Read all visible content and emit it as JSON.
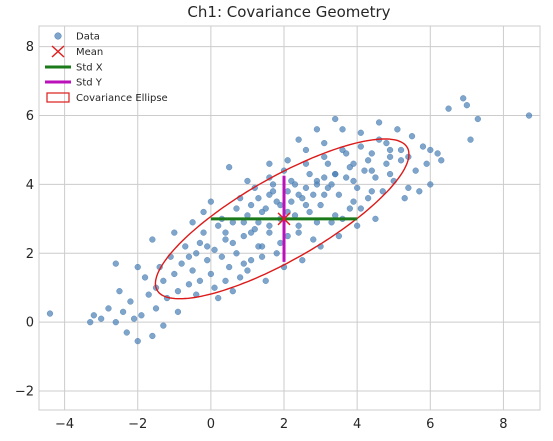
{
  "chart_data": {
    "type": "scatter",
    "title": "Ch1: Covariance Geometry",
    "xlabel": "",
    "ylabel": "",
    "xlim": [
      -4.7,
      9.0
    ],
    "ylim": [
      -2.55,
      8.6
    ],
    "xticks": [
      -4,
      -2,
      0,
      2,
      4,
      6,
      8
    ],
    "yticks": [
      -2,
      0,
      2,
      4,
      6,
      8
    ],
    "xtick_labels": [
      "−4",
      "−2",
      "0",
      "2",
      "4",
      "6",
      "8"
    ],
    "ytick_labels": [
      "−2",
      "0",
      "2",
      "4",
      "6",
      "8"
    ],
    "grid": true,
    "legend_position": "top-left",
    "legend": [
      "Data",
      "Mean",
      "Std X",
      "Std Y",
      "Covariance Ellipse"
    ],
    "colors": {
      "data": "#4a7fb5",
      "mean": "#e01f1f",
      "std_x": "#1a7a1a",
      "std_y": "#bb11bb",
      "ellipse": "#dd1a1a",
      "grid": "#cccccc",
      "frame": "#cccccc"
    },
    "mean": [
      2.0,
      3.0
    ],
    "std_x": {
      "center": [
        2.0,
        3.0
      ],
      "half_width": 2.0
    },
    "std_y": {
      "center": [
        2.0,
        3.0
      ],
      "half_height": 1.25
    },
    "covariance_ellipse": {
      "center": [
        1.95,
        3.0
      ],
      "semi_major": 4.0,
      "semi_minor": 1.18,
      "angle_deg": 31.5
    },
    "series": [
      {
        "name": "Data",
        "points": [
          [
            -4.4,
            0.25
          ],
          [
            -3.2,
            0.2
          ],
          [
            -3.0,
            0.1
          ],
          [
            -2.8,
            0.4
          ],
          [
            -2.6,
            0.0
          ],
          [
            -2.5,
            0.9
          ],
          [
            -2.4,
            0.3
          ],
          [
            -2.2,
            0.6
          ],
          [
            -2.1,
            0.1
          ],
          [
            -2.0,
            -0.55
          ],
          [
            -2.0,
            1.6
          ],
          [
            -1.9,
            0.2
          ],
          [
            -1.7,
            0.8
          ],
          [
            -1.6,
            -0.4
          ],
          [
            -1.8,
            1.3
          ],
          [
            -1.5,
            1.0
          ],
          [
            -1.4,
            1.6
          ],
          [
            -1.3,
            1.2
          ],
          [
            -1.6,
            2.4
          ],
          [
            -1.2,
            0.7
          ],
          [
            -1.1,
            1.9
          ],
          [
            -1.0,
            1.4
          ],
          [
            -0.9,
            0.9
          ],
          [
            -0.8,
            1.7
          ],
          [
            -0.7,
            2.2
          ],
          [
            -0.6,
            1.1
          ],
          [
            -0.5,
            1.5
          ],
          [
            -0.4,
            2.0
          ],
          [
            -0.3,
            1.2
          ],
          [
            -0.2,
            2.6
          ],
          [
            -0.1,
            1.8
          ],
          [
            0.0,
            1.4
          ],
          [
            0.1,
            2.1
          ],
          [
            0.2,
            0.7
          ],
          [
            0.3,
            1.9
          ],
          [
            0.4,
            2.4
          ],
          [
            0.5,
            1.6
          ],
          [
            0.6,
            2.9
          ],
          [
            0.7,
            2.0
          ],
          [
            0.8,
            1.3
          ],
          [
            0.9,
            2.5
          ],
          [
            1.0,
            3.1
          ],
          [
            1.1,
            1.8
          ],
          [
            1.2,
            2.7
          ],
          [
            1.3,
            3.6
          ],
          [
            1.4,
            2.2
          ],
          [
            1.5,
            3.3
          ],
          [
            1.6,
            2.6
          ],
          [
            1.7,
            3.8
          ],
          [
            1.8,
            2.0
          ],
          [
            1.9,
            3.0
          ],
          [
            2.0,
            4.4
          ],
          [
            2.1,
            2.5
          ],
          [
            2.2,
            3.5
          ],
          [
            2.3,
            4.0
          ],
          [
            2.4,
            2.8
          ],
          [
            2.5,
            3.6
          ],
          [
            2.6,
            4.6
          ],
          [
            2.7,
            3.2
          ],
          [
            2.8,
            2.4
          ],
          [
            2.9,
            4.1
          ],
          [
            3.0,
            3.4
          ],
          [
            3.1,
            4.8
          ],
          [
            3.2,
            3.9
          ],
          [
            3.3,
            2.9
          ],
          [
            3.4,
            4.3
          ],
          [
            3.5,
            3.7
          ],
          [
            3.6,
            5.0
          ],
          [
            3.7,
            4.2
          ],
          [
            3.8,
            3.3
          ],
          [
            3.9,
            4.6
          ],
          [
            4.0,
            3.9
          ],
          [
            4.1,
            5.1
          ],
          [
            4.2,
            4.4
          ],
          [
            4.3,
            3.6
          ],
          [
            4.4,
            4.9
          ],
          [
            4.5,
            4.2
          ],
          [
            4.6,
            5.3
          ],
          [
            4.7,
            3.8
          ],
          [
            4.8,
            4.6
          ],
          [
            4.9,
            5.0
          ],
          [
            5.0,
            4.1
          ],
          [
            5.2,
            4.7
          ],
          [
            5.4,
            3.9
          ],
          [
            5.6,
            4.4
          ],
          [
            5.8,
            5.1
          ],
          [
            5.5,
            5.4
          ],
          [
            5.3,
            3.6
          ],
          [
            6.0,
            5.0
          ],
          [
            6.2,
            4.9
          ],
          [
            6.3,
            4.7
          ],
          [
            6.0,
            4.0
          ],
          [
            5.7,
            3.8
          ],
          [
            6.5,
            6.2
          ],
          [
            6.9,
            6.5
          ],
          [
            7.0,
            6.3
          ],
          [
            7.1,
            5.3
          ],
          [
            7.3,
            5.9
          ],
          [
            8.7,
            6.0
          ],
          [
            -1.5,
            0.4
          ],
          [
            -0.9,
            0.3
          ],
          [
            -0.4,
            0.8
          ],
          [
            0.1,
            1.0
          ],
          [
            0.6,
            0.9
          ],
          [
            1.0,
            1.5
          ],
          [
            1.5,
            1.2
          ],
          [
            2.0,
            1.6
          ],
          [
            2.5,
            1.8
          ],
          [
            3.0,
            2.2
          ],
          [
            3.5,
            2.5
          ],
          [
            4.0,
            2.8
          ],
          [
            4.5,
            3.0
          ],
          [
            0.0,
            3.5
          ],
          [
            -0.2,
            3.2
          ],
          [
            0.3,
            3.0
          ],
          [
            0.8,
            3.6
          ],
          [
            1.2,
            3.9
          ],
          [
            1.6,
            4.2
          ],
          [
            0.5,
            4.5
          ],
          [
            1.0,
            4.1
          ],
          [
            -0.5,
            2.9
          ],
          [
            -1.0,
            2.6
          ],
          [
            -0.3,
            2.3
          ],
          [
            0.2,
            2.8
          ],
          [
            0.7,
            3.3
          ],
          [
            1.3,
            2.9
          ],
          [
            1.8,
            3.5
          ],
          [
            2.3,
            3.1
          ],
          [
            2.8,
            3.7
          ],
          [
            3.3,
            4.0
          ],
          [
            3.8,
            4.5
          ],
          [
            4.3,
            4.7
          ],
          [
            4.8,
            5.2
          ],
          [
            5.1,
            5.6
          ],
          [
            4.6,
            5.8
          ],
          [
            4.1,
            5.5
          ],
          [
            3.6,
            5.6
          ],
          [
            3.1,
            5.2
          ],
          [
            2.6,
            5.0
          ],
          [
            2.1,
            4.7
          ],
          [
            1.6,
            4.6
          ],
          [
            2.4,
            5.3
          ],
          [
            2.9,
            5.6
          ],
          [
            3.4,
            5.9
          ],
          [
            0.4,
            1.2
          ],
          [
            0.9,
            1.7
          ],
          [
            1.4,
            1.9
          ],
          [
            1.9,
            2.3
          ],
          [
            2.4,
            2.6
          ],
          [
            2.9,
            2.9
          ],
          [
            3.4,
            3.1
          ],
          [
            3.9,
            3.5
          ],
          [
            4.4,
            3.8
          ],
          [
            4.9,
            4.3
          ],
          [
            5.4,
            4.8
          ],
          [
            5.9,
            4.6
          ],
          [
            -2.6,
            1.7
          ],
          [
            -3.3,
            0.0
          ],
          [
            -2.3,
            -0.3
          ],
          [
            -1.3,
            -0.1
          ],
          [
            1.7,
            4.0
          ],
          [
            2.2,
            4.1
          ],
          [
            2.7,
            4.3
          ],
          [
            3.2,
            4.6
          ],
          [
            3.7,
            4.9
          ],
          [
            1.1,
            3.4
          ],
          [
            1.6,
            3.7
          ],
          [
            2.1,
            3.8
          ],
          [
            2.6,
            3.9
          ],
          [
            3.1,
            4.2
          ],
          [
            0.6,
            2.3
          ],
          [
            1.1,
            2.6
          ],
          [
            1.6,
            2.8
          ],
          [
            2.1,
            3.2
          ],
          [
            2.6,
            3.4
          ],
          [
            3.1,
            3.7
          ],
          [
            -0.6,
            1.9
          ],
          [
            -0.1,
            2.2
          ],
          [
            0.4,
            2.6
          ],
          [
            0.9,
            2.9
          ],
          [
            1.4,
            3.2
          ],
          [
            1.9,
            3.4
          ],
          [
            2.4,
            3.7
          ],
          [
            2.9,
            4.0
          ],
          [
            3.4,
            4.3
          ],
          [
            3.9,
            4.1
          ],
          [
            4.4,
            4.4
          ],
          [
            4.9,
            4.8
          ],
          [
            5.2,
            5.0
          ],
          [
            3.6,
            3.0
          ],
          [
            4.1,
            3.3
          ],
          [
            1.3,
            2.2
          ]
        ]
      }
    ]
  }
}
